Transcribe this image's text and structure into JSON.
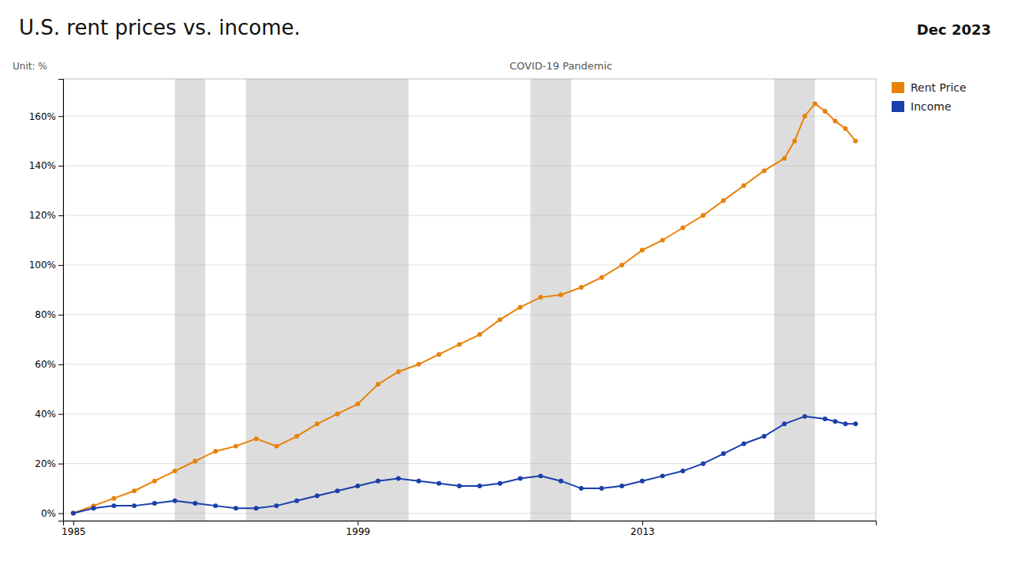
{
  "chart_data": {
    "type": "line",
    "title": "U.S. rent prices vs. income.",
    "subtitle": "Dec 2023",
    "ylabel": "Unit: %",
    "annotations": [
      {
        "text": "COVID-19 Pandemic",
        "x": 2009
      }
    ],
    "bands": [
      [
        1990,
        1991.5
      ],
      [
        1993.5,
        2001.5
      ],
      [
        2007.5,
        2009.5
      ],
      [
        2019.5,
        2021.5
      ]
    ],
    "xlim": [
      1984.5,
      2024.5
    ],
    "xticks": [
      1985,
      1999,
      2013
    ],
    "ylim": [
      -3,
      175
    ],
    "yticks": [
      {
        "value": 0,
        "label": "0%"
      },
      {
        "value": 20,
        "label": "20%"
      },
      {
        "value": 40,
        "label": "40%"
      },
      {
        "value": 60,
        "label": "60%"
      },
      {
        "value": 80,
        "label": "80%"
      },
      {
        "value": 100,
        "label": "100%"
      },
      {
        "value": 120,
        "label": "120%"
      },
      {
        "value": 140,
        "label": "140%"
      },
      {
        "value": 160,
        "label": "160%"
      }
    ],
    "grid": true,
    "legend": "top-right",
    "series": [
      {
        "name": "Rent Price",
        "color": "#E8820A",
        "marker": "circle",
        "x": [
          1985,
          1986,
          1987,
          1988,
          1989,
          1990,
          1991,
          1992,
          1993,
          1994,
          1995,
          1996,
          1997,
          1998,
          1999,
          2000,
          2001,
          2002,
          2003,
          2004,
          2005,
          2006,
          2007,
          2008,
          2009,
          2010,
          2011,
          2012,
          2013,
          2014,
          2015,
          2016,
          2017,
          2018,
          2019,
          2020,
          2020.5,
          2021,
          2021.5,
          2022,
          2022.5,
          2023,
          2023.5
        ],
        "values": [
          0,
          3,
          6,
          9,
          13,
          17,
          21,
          25,
          27,
          30,
          27,
          31,
          36,
          40,
          44,
          52,
          57,
          60,
          64,
          68,
          72,
          78,
          83,
          87,
          88,
          91,
          95,
          100,
          106,
          110,
          115,
          120,
          126,
          132,
          138,
          143,
          150,
          160,
          165,
          162,
          158,
          155,
          150
        ]
      },
      {
        "name": "Income",
        "color": "#1a3faa",
        "marker": "circle",
        "x": [
          1985,
          1986,
          1987,
          1988,
          1989,
          1990,
          1991,
          1992,
          1993,
          1994,
          1995,
          1996,
          1997,
          1998,
          1999,
          2000,
          2001,
          2002,
          2003,
          2004,
          2005,
          2006,
          2007,
          2008,
          2009,
          2010,
          2011,
          2012,
          2013,
          2014,
          2015,
          2016,
          2017,
          2018,
          2019,
          2020,
          2021,
          2022,
          2022.5,
          2023,
          2023.5
        ],
        "values": [
          0,
          2,
          3,
          3,
          4,
          5,
          4,
          3,
          2,
          2,
          3,
          5,
          7,
          9,
          11,
          13,
          14,
          13,
          12,
          11,
          11,
          12,
          14,
          15,
          13,
          10,
          10,
          11,
          13,
          15,
          17,
          20,
          24,
          28,
          31,
          36,
          39,
          38,
          37,
          36,
          36
        ]
      }
    ]
  }
}
